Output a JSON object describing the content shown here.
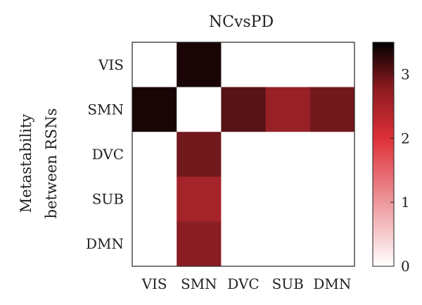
{
  "chart_data": {
    "type": "heatmap",
    "title": "NCvsPD",
    "ylabel_lines": [
      "Metastability",
      "between RSNs"
    ],
    "xlabel": "",
    "rows": [
      "VIS",
      "SMN",
      "DVC",
      "SUB",
      "DMN"
    ],
    "cols": [
      "VIS",
      "SMN",
      "DVC",
      "SUB",
      "DMN"
    ],
    "values": [
      [
        0,
        3.3,
        0,
        0,
        0
      ],
      [
        3.3,
        0,
        2.8,
        2.3,
        2.6
      ],
      [
        0,
        2.6,
        0,
        0,
        0
      ],
      [
        0,
        2.2,
        0,
        0,
        0
      ],
      [
        0,
        2.4,
        0,
        0,
        0
      ]
    ],
    "colorbar": {
      "min": 0,
      "max": 3.5,
      "ticks": [
        0,
        1,
        2,
        3
      ],
      "tick_labels": [
        "0",
        "1",
        "2",
        "3"
      ],
      "colors": [
        "#ffffff",
        "#dd3038",
        "#000000"
      ]
    },
    "grid": false,
    "legend": "right"
  }
}
